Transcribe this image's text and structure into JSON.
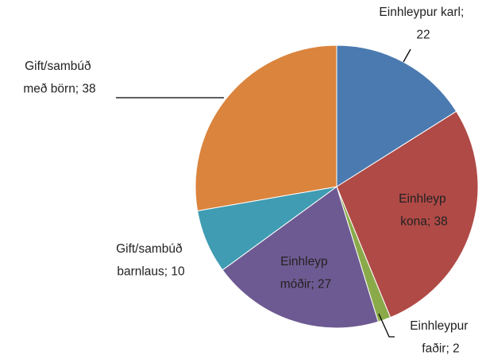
{
  "chart_data": {
    "type": "pie",
    "labels": [
      "Einhleypur karl; 22",
      "Einhleyp kona; 38",
      "Einhleypur faðir; 2",
      "Einhleyp móðir; 27",
      "Gift/sambúð barnlaus; 10",
      "Gift/sambúð með börn; 38"
    ],
    "values": [
      22,
      38,
      2,
      27,
      10,
      38
    ],
    "colors": [
      "#4a7ab0",
      "#b04a46",
      "#8aaa4a",
      "#6e5a92",
      "#3f9cb2",
      "#db843d"
    ]
  }
}
